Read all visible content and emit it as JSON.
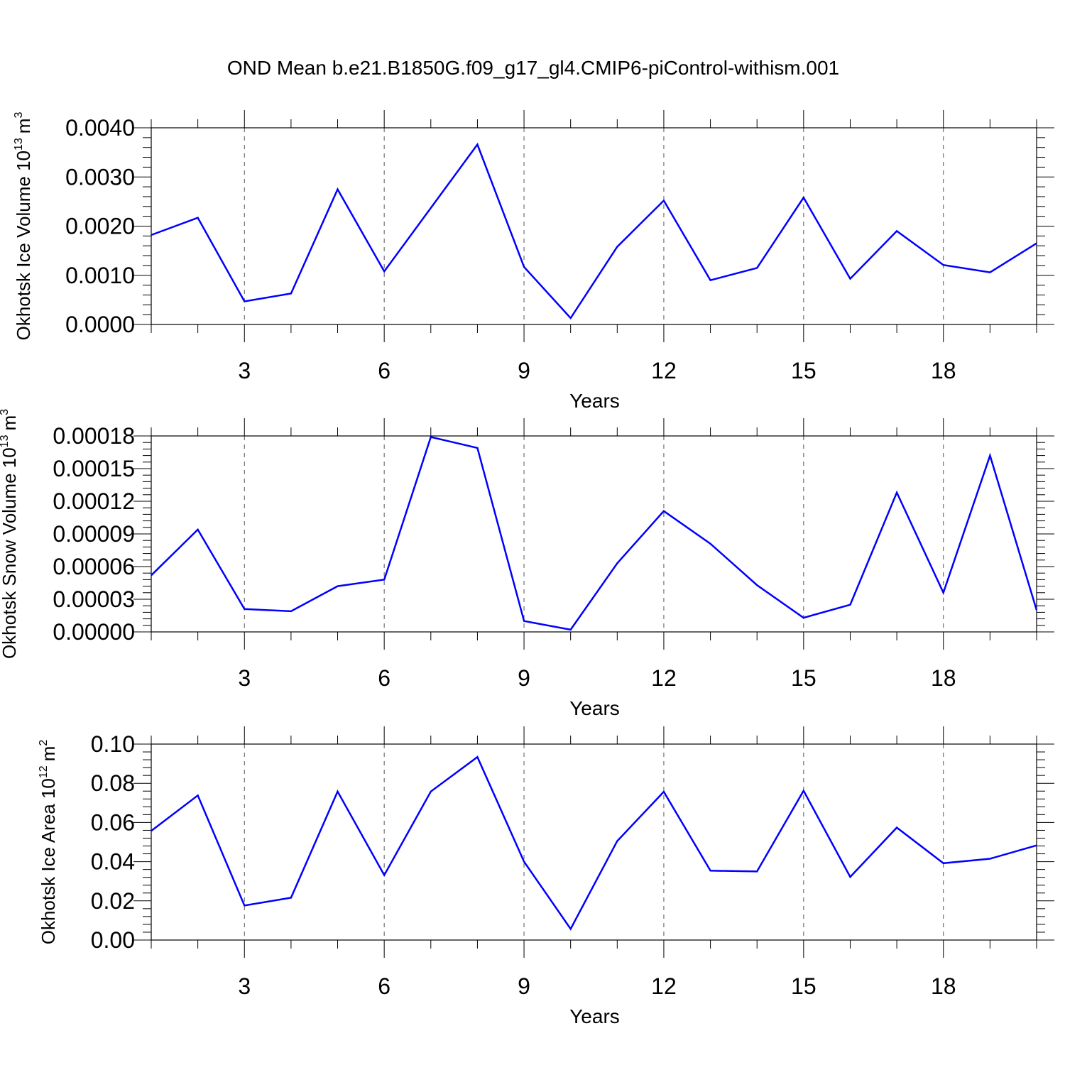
{
  "title": "OND Mean b.e21.B1850G.f09_g17_gl4.CMIP6-piControl-withism.001",
  "colors": {
    "series": "#0000ff",
    "axis": "#000000",
    "grid": "#555555"
  },
  "chart_data": [
    {
      "type": "line",
      "title": "",
      "xlabel": "Years",
      "ylabel": "Okhotsk Ice Volume 10",
      "ylabel_exponent": "13",
      "ylabel_unit": "m",
      "ylabel_unit_exponent": "3",
      "xlim": [
        1,
        20
      ],
      "ylim": [
        0,
        0.004
      ],
      "grid": "vertical dashed at major ticks",
      "x_ticks": [
        3,
        6,
        9,
        12,
        15,
        18
      ],
      "x_tick_labels": [
        "3",
        "6",
        "9",
        "12",
        "15",
        "18"
      ],
      "y_ticks": [
        0,
        0.001,
        0.002,
        0.003,
        0.004
      ],
      "y_tick_labels": [
        "0.0000",
        "0.0010",
        "0.0020",
        "0.0030",
        "0.0040"
      ],
      "x": [
        1,
        2,
        3,
        4,
        5,
        6,
        7,
        8,
        9,
        10,
        11,
        12,
        13,
        14,
        15,
        16,
        17,
        18,
        19,
        20
      ],
      "y": [
        0.00182,
        0.00217,
        0.00047,
        0.00063,
        0.00275,
        0.00108,
        0.00237,
        0.00366,
        0.00117,
        0.00013,
        0.00158,
        0.00252,
        0.0009,
        0.00115,
        0.00258,
        0.00093,
        0.0019,
        0.00121,
        0.00106,
        0.00165
      ]
    },
    {
      "type": "line",
      "title": "",
      "xlabel": "Years",
      "ylabel": "Okhotsk Snow Volume 10",
      "ylabel_exponent": "13",
      "ylabel_unit": "m",
      "ylabel_unit_exponent": "3",
      "xlim": [
        1,
        20
      ],
      "ylim": [
        0,
        0.00018
      ],
      "grid": "vertical dashed at major ticks",
      "x_ticks": [
        3,
        6,
        9,
        12,
        15,
        18
      ],
      "x_tick_labels": [
        "3",
        "6",
        "9",
        "12",
        "15",
        "18"
      ],
      "y_ticks": [
        0,
        3e-05,
        6e-05,
        9e-05,
        0.00012,
        0.00015,
        0.00018
      ],
      "y_tick_labels": [
        "0.00000",
        "0.00003",
        "0.00006",
        "0.00009",
        "0.00012",
        "0.00015",
        "0.00018"
      ],
      "x": [
        1,
        2,
        3,
        4,
        5,
        6,
        7,
        8,
        9,
        10,
        11,
        12,
        13,
        14,
        15,
        16,
        17,
        18,
        19,
        20
      ],
      "y": [
        5.2e-05,
        9.4e-05,
        2.1e-05,
        1.9e-05,
        4.2e-05,
        4.8e-05,
        0.000179,
        0.000169,
        1e-05,
        2e-06,
        6.3e-05,
        0.000111,
        8.1e-05,
        4.3e-05,
        1.3e-05,
        2.5e-05,
        0.000128,
        3.6e-05,
        0.000162,
        2e-05
      ]
    },
    {
      "type": "line",
      "title": "",
      "xlabel": "Years",
      "ylabel": "Okhotsk Ice Area 10",
      "ylabel_exponent": "12",
      "ylabel_unit": "m",
      "ylabel_unit_exponent": "2",
      "xlim": [
        1,
        20
      ],
      "ylim": [
        0,
        0.1
      ],
      "grid": "vertical dashed at major ticks",
      "x_ticks": [
        3,
        6,
        9,
        12,
        15,
        18
      ],
      "x_tick_labels": [
        "3",
        "6",
        "9",
        "12",
        "15",
        "18"
      ],
      "y_ticks": [
        0,
        0.02,
        0.04,
        0.06,
        0.08,
        0.1
      ],
      "y_tick_labels": [
        "0.00",
        "0.02",
        "0.04",
        "0.06",
        "0.08",
        "0.10"
      ],
      "x": [
        1,
        2,
        3,
        4,
        5,
        6,
        7,
        8,
        9,
        10,
        11,
        12,
        13,
        14,
        15,
        16,
        17,
        18,
        19,
        20
      ],
      "y": [
        0.0557,
        0.0738,
        0.0176,
        0.0216,
        0.0758,
        0.0331,
        0.0758,
        0.0934,
        0.04,
        0.0057,
        0.0505,
        0.0757,
        0.0354,
        0.035,
        0.0762,
        0.0322,
        0.0574,
        0.0392,
        0.0415,
        0.0483
      ]
    }
  ]
}
